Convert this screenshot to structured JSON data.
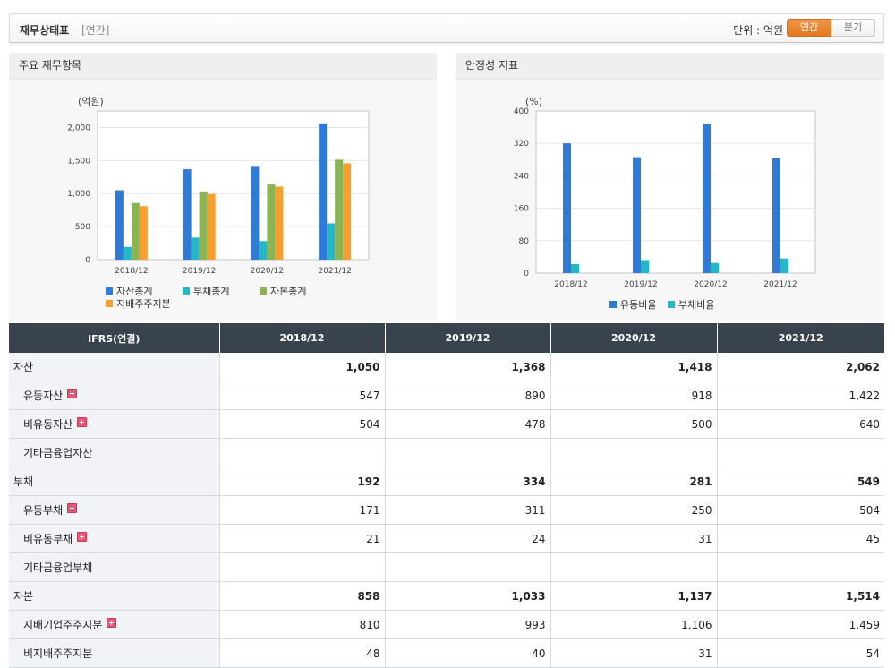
{
  "header": {
    "title": "재무상태표",
    "subtitle": "[연간]",
    "unit_label": "단위 : 억원",
    "toggle": [
      "연간",
      "분기"
    ],
    "active_toggle": "연간"
  },
  "panels": {
    "left_title": "주요 재무항목",
    "right_title": "안정성 지표"
  },
  "colors": {
    "blue": "#2f7ad6",
    "cyan": "#26b6c6",
    "green": "#8cb454",
    "orange": "#f6a032"
  },
  "chart_data": [
    {
      "type": "bar",
      "unit_label": "(억원)",
      "categories": [
        "2018/12",
        "2019/12",
        "2020/12",
        "2021/12"
      ],
      "ylim": [
        0,
        2250
      ],
      "yticks": [
        0,
        500,
        1000,
        1500,
        2000
      ],
      "ytick_labels": [
        "0",
        "500",
        "1,000",
        "1,500",
        "2,000"
      ],
      "series": [
        {
          "name": "자산총계",
          "color": "#2f7ad6",
          "values": [
            1050,
            1368,
            1418,
            2062
          ]
        },
        {
          "name": "부채총계",
          "color": "#26b6c6",
          "values": [
            192,
            334,
            281,
            549
          ]
        },
        {
          "name": "자본총계",
          "color": "#8cb454",
          "values": [
            858,
            1033,
            1137,
            1514
          ]
        },
        {
          "name": "지배주주지분",
          "color": "#f6a032",
          "values": [
            810,
            993,
            1106,
            1459
          ]
        }
      ],
      "grid": true,
      "legend": "bottom"
    },
    {
      "type": "bar",
      "unit_label": "(%)",
      "categories": [
        "2018/12",
        "2019/12",
        "2020/12",
        "2021/12"
      ],
      "ylim": [
        0,
        400
      ],
      "yticks": [
        0,
        80,
        160,
        240,
        320,
        400
      ],
      "ytick_labels": [
        "0",
        "80",
        "160",
        "240",
        "320",
        "400"
      ],
      "series": [
        {
          "name": "유동비율",
          "color": "#2f7ad6",
          "values": [
            320,
            286,
            368,
            284
          ]
        },
        {
          "name": "부채비율",
          "color": "#26b6c6",
          "values": [
            22,
            32,
            25,
            36
          ]
        }
      ],
      "grid": true,
      "legend": "bottom"
    }
  ],
  "table": {
    "header": [
      "IFRS(연결)",
      "2018/12",
      "2019/12",
      "2020/12",
      "2021/12"
    ],
    "rows": [
      {
        "label": "자산",
        "level": 0,
        "bold": true,
        "expand": false,
        "values": [
          "1,050",
          "1,368",
          "1,418",
          "2,062"
        ]
      },
      {
        "label": "유동자산",
        "level": 1,
        "bold": false,
        "expand": true,
        "values": [
          "547",
          "890",
          "918",
          "1,422"
        ]
      },
      {
        "label": "비유동자산",
        "level": 1,
        "bold": false,
        "expand": true,
        "values": [
          "504",
          "478",
          "500",
          "640"
        ]
      },
      {
        "label": "기타금융업자산",
        "level": 1,
        "bold": false,
        "expand": false,
        "values": [
          "",
          "",
          "",
          ""
        ]
      },
      {
        "label": "부채",
        "level": 0,
        "bold": true,
        "expand": false,
        "values": [
          "192",
          "334",
          "281",
          "549"
        ]
      },
      {
        "label": "유동부채",
        "level": 1,
        "bold": false,
        "expand": true,
        "values": [
          "171",
          "311",
          "250",
          "504"
        ]
      },
      {
        "label": "비유동부채",
        "level": 1,
        "bold": false,
        "expand": true,
        "values": [
          "21",
          "24",
          "31",
          "45"
        ]
      },
      {
        "label": "기타금융업부채",
        "level": 1,
        "bold": false,
        "expand": false,
        "values": [
          "",
          "",
          "",
          ""
        ]
      },
      {
        "label": "자본",
        "level": 0,
        "bold": true,
        "expand": false,
        "values": [
          "858",
          "1,033",
          "1,137",
          "1,514"
        ]
      },
      {
        "label": "지배기업주주지분",
        "level": 1,
        "bold": false,
        "expand": true,
        "values": [
          "810",
          "993",
          "1,106",
          "1,459"
        ]
      },
      {
        "label": "비지배주주지분",
        "level": 1,
        "bold": false,
        "expand": false,
        "values": [
          "48",
          "40",
          "31",
          "54"
        ]
      }
    ]
  }
}
